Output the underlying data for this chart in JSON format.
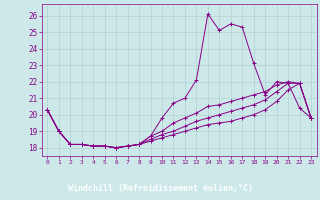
{
  "xlabel": "Windchill (Refroidissement éolien,°C)",
  "bg_color": "#cce8e8",
  "grid_color": "#aacccc",
  "line_color": "#880088",
  "label_bg": "#660088",
  "label_fg": "#ffffff",
  "marker": "+",
  "xlim": [
    -0.5,
    23.5
  ],
  "ylim": [
    17.5,
    26.7
  ],
  "yticks": [
    18,
    19,
    20,
    21,
    22,
    23,
    24,
    25,
    26
  ],
  "xticks": [
    0,
    1,
    2,
    3,
    4,
    5,
    6,
    7,
    8,
    9,
    10,
    11,
    12,
    13,
    14,
    15,
    16,
    17,
    18,
    19,
    20,
    21,
    22,
    23
  ],
  "series": [
    [
      20.3,
      19.0,
      18.2,
      18.2,
      18.1,
      18.1,
      18.0,
      18.1,
      18.2,
      18.7,
      19.8,
      20.7,
      21.0,
      22.1,
      26.1,
      25.1,
      25.5,
      25.3,
      23.1,
      21.2,
      22.0,
      21.9,
      20.4,
      19.8
    ],
    [
      20.3,
      19.0,
      18.2,
      18.2,
      18.1,
      18.1,
      18.0,
      18.1,
      18.2,
      18.7,
      19.0,
      19.5,
      19.8,
      20.1,
      20.5,
      20.6,
      20.8,
      21.0,
      21.2,
      21.4,
      21.8,
      22.0,
      21.9,
      19.8
    ],
    [
      20.3,
      19.0,
      18.2,
      18.2,
      18.1,
      18.1,
      18.0,
      18.1,
      18.2,
      18.5,
      18.8,
      19.0,
      19.3,
      19.6,
      19.8,
      20.0,
      20.2,
      20.4,
      20.6,
      20.9,
      21.4,
      21.9,
      21.9,
      19.8
    ],
    [
      20.3,
      19.0,
      18.2,
      18.2,
      18.1,
      18.1,
      18.0,
      18.1,
      18.2,
      18.4,
      18.6,
      18.8,
      19.0,
      19.2,
      19.4,
      19.5,
      19.6,
      19.8,
      20.0,
      20.3,
      20.8,
      21.5,
      21.9,
      19.8
    ]
  ]
}
